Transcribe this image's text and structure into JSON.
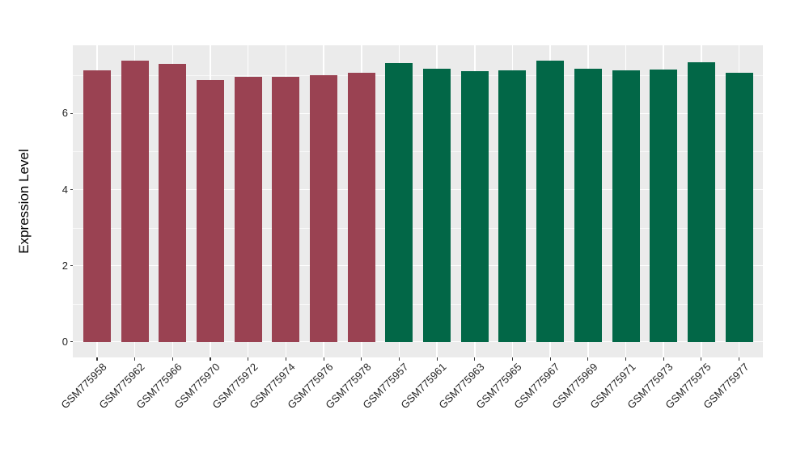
{
  "figure": {
    "background": "#FFFFFF",
    "panel_background": "#EBEBEB",
    "gridline_color": "#FFFFFF",
    "tick_mark_color": "#333333",
    "tick_label_color": "#262626",
    "axis_title_color": "#000000"
  },
  "chart_data": {
    "type": "bar",
    "title": "",
    "xlabel": "",
    "ylabel": "Expression Level",
    "ylim": [
      0,
      7.79
    ],
    "yticks": [
      0,
      2,
      4,
      6
    ],
    "minor_gridlines": [
      1,
      3,
      5,
      7
    ],
    "grid": "on",
    "legend": "none",
    "x_label_rotation_deg": 45,
    "categories": [
      "GSM775958",
      "GSM775962",
      "GSM775966",
      "GSM775970",
      "GSM775972",
      "GSM775974",
      "GSM775976",
      "GSM775978",
      "GSM775957",
      "GSM775961",
      "GSM775963",
      "GSM775965",
      "GSM775967",
      "GSM775969",
      "GSM775971",
      "GSM775973",
      "GSM775975",
      "GSM775977"
    ],
    "values": [
      7.13,
      7.4,
      7.31,
      6.89,
      6.97,
      6.97,
      7.0,
      7.08,
      7.33,
      7.18,
      7.12,
      7.14,
      7.39,
      7.18,
      7.13,
      7.15,
      7.35,
      7.08
    ],
    "groups": [
      "group1",
      "group1",
      "group1",
      "group1",
      "group1",
      "group1",
      "group1",
      "group1",
      "group2",
      "group2",
      "group2",
      "group2",
      "group2",
      "group2",
      "group2",
      "group2",
      "group2",
      "group2"
    ],
    "group_colors": {
      "group1": "#9A4252",
      "group2": "#026747"
    }
  }
}
